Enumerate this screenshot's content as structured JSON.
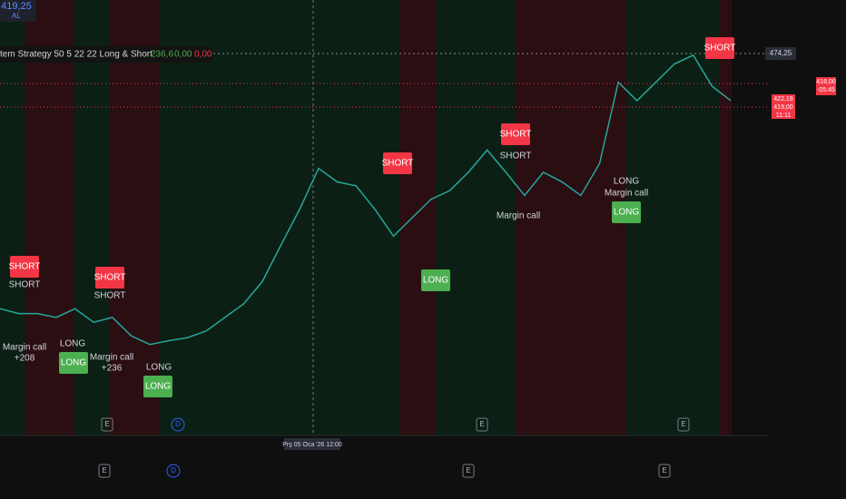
{
  "header": {
    "price": "419,25",
    "action": "AL"
  },
  "legend": {
    "title": "tem Strategy 50 5 22 22 Long & Short",
    "value_1": "236,6",
    "value_2": "0,00",
    "value_3": "0,00"
  },
  "chart_data": {
    "type": "line",
    "ylim": [
      80,
      530
    ],
    "series": [
      {
        "color": "#26a69a",
        "values": [
          211,
          206,
          206,
          202,
          211,
          197,
          202,
          183,
          174,
          178,
          181,
          188,
          202,
          216,
          239,
          277,
          314,
          356,
          342,
          338,
          314,
          286,
          305,
          324,
          333,
          352,
          375,
          352,
          328,
          352,
          342,
          328,
          361,
          445,
          426,
          445,
          464,
          473,
          441,
          426
        ]
      }
    ]
  },
  "signals": [
    "SHORT",
    "SHORT",
    "Margin call",
    "+208",
    "LONG",
    "LONG",
    "SHORT",
    "SHORT",
    "Margin call",
    "+236",
    "LONG",
    "LONG",
    "SHORT",
    "LONG",
    "SHORT",
    "SHORT",
    "Margin call",
    "LONG",
    "Margin call",
    "LONG",
    "SHORT"
  ],
  "price_axis": {
    "last": "474,25",
    "alert_price": "418,00",
    "alert_time": "-05:45",
    "current_high": "422,19",
    "current": "419,00",
    "countdown": "11:11"
  },
  "time_axis": {
    "crosshair": "Prş 05 Oca '26   12:00"
  },
  "event_icons": [
    "E",
    "D",
    "E",
    "E",
    "E",
    "D",
    "E",
    "E"
  ]
}
